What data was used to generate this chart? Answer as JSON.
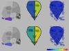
{
  "fig_bg": "#b8b8b8",
  "panel_bg_left": "#b0b0b0",
  "panel_bg_center": "#383838",
  "panel_bg_right": "#050510",
  "skull_base": "#a0a0a0",
  "skull_dark": "#707070",
  "skull_light": "#c8c8c8",
  "mandible_color_top": "#6030b8",
  "mandible_color_bot": "#4858c8",
  "face_teal": "#3060c0",
  "face_yellow": "#a8c830",
  "face_teal2": "#40b890",
  "face_yellow2": "#c8c828",
  "fe_face_color": "#1828b0",
  "fe_bg": "#040412",
  "colorbar_colors": [
    "#0000b0",
    "#0000ff",
    "#0060ff",
    "#00c0ff",
    "#00ffff",
    "#40ff80",
    "#c0ff00",
    "#ffff00",
    "#ff8000",
    "#ff2000"
  ],
  "divider_color": "#e0e0e0",
  "wspace": 0.03,
  "hspace": 0.03
}
